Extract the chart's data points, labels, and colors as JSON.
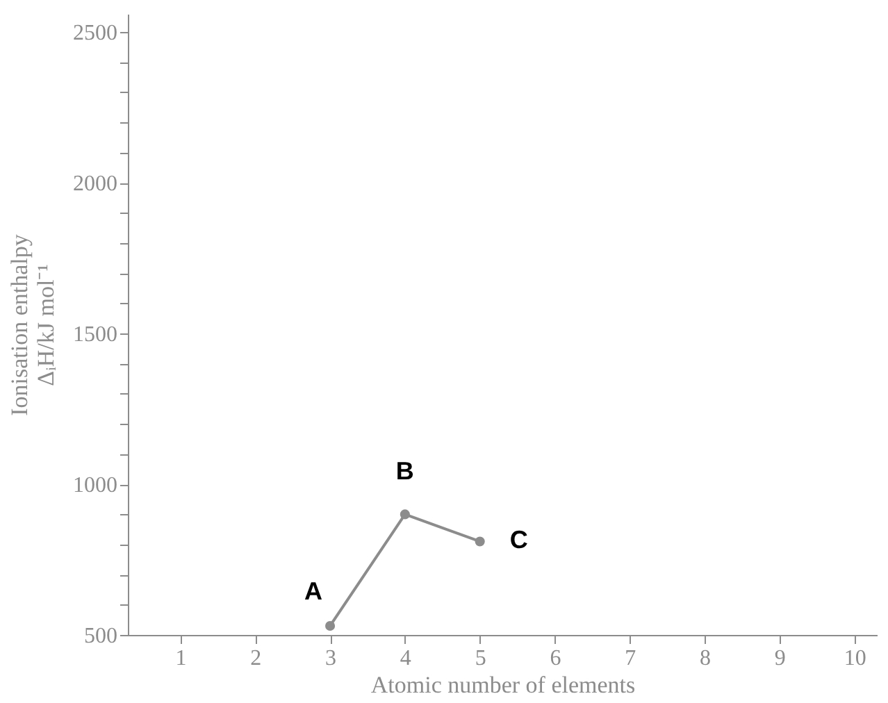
{
  "chart_data": {
    "type": "line",
    "xlabel": "Atomic number of elements",
    "ylabel": "Ionisation enthalpy\nΔᵢH/kJ mol⁻¹",
    "x": [
      3,
      4,
      5
    ],
    "series": [
      {
        "color": "#8c8c8c",
        "values": [
          530,
          900,
          810
        ]
      }
    ],
    "marker": "circle",
    "line_style": "solid",
    "xlim": [
      0.3,
      10.3
    ],
    "xticks": [
      1,
      2,
      3,
      4,
      5,
      6,
      7,
      8,
      9,
      10
    ],
    "ylim": [
      500,
      2560
    ],
    "yticks": [
      500,
      {
        "value": 600,
        "label": null
      },
      {
        "value": 700,
        "label": null
      },
      {
        "value": 800,
        "label": null
      },
      {
        "value": 900,
        "label": null
      },
      1000,
      {
        "value": 1100,
        "label": null
      },
      {
        "value": 1200,
        "label": null
      },
      {
        "value": 1300,
        "label": null
      },
      {
        "value": 1400,
        "label": null
      },
      1500,
      {
        "value": 1600,
        "label": null
      },
      {
        "value": 1700,
        "label": null
      },
      {
        "value": 1800,
        "label": null
      },
      {
        "value": 1900,
        "label": null
      },
      2000,
      {
        "value": 2100,
        "label": null
      },
      {
        "value": 2200,
        "label": null
      },
      {
        "value": 2300,
        "label": null
      },
      {
        "value": 2400,
        "label": null
      },
      2500
    ],
    "grid": false,
    "legend": false,
    "annotations": [
      {
        "text": "A",
        "x": 3,
        "y": 530
      },
      {
        "text": "B",
        "x": 4,
        "y": 900
      },
      {
        "text": "C",
        "x": 5,
        "y": 810
      }
    ]
  }
}
